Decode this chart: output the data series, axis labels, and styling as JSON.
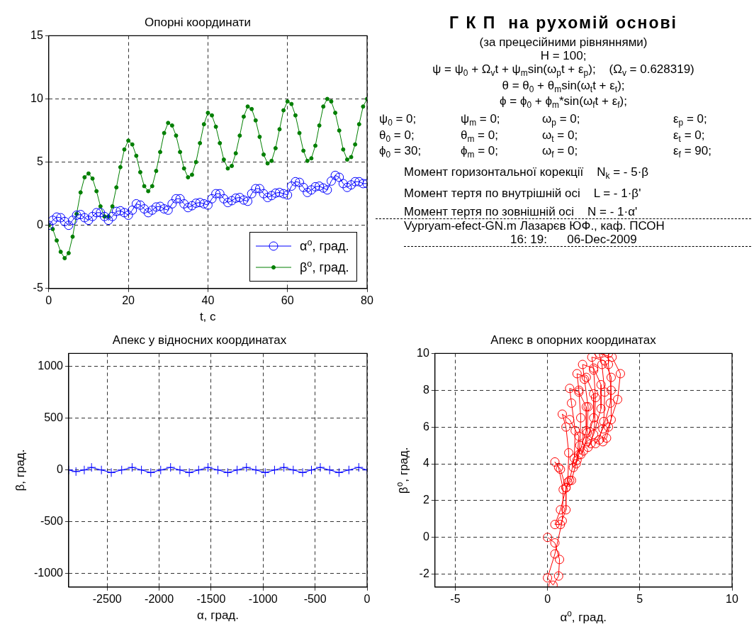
{
  "chart_data": [
    {
      "type": "line",
      "title": "Опорні координати",
      "xlabel": "t, c",
      "xlim": [
        0,
        80
      ],
      "xticks": [
        0,
        20,
        40,
        60,
        80
      ],
      "ylim": [
        -5,
        15
      ],
      "yticks": [
        -5,
        0,
        5,
        10,
        15
      ],
      "grid": true,
      "legend": "bottom right",
      "marker": "circle",
      "series": [
        {
          "name": "α$^{o}$, град.",
          "color": "#0000ff",
          "x": [
            0,
            1,
            2,
            3,
            4,
            5,
            6,
            7,
            8,
            9,
            10,
            11,
            12,
            13,
            14,
            15,
            16,
            17,
            18,
            19,
            20,
            21,
            22,
            23,
            24,
            25,
            26,
            27,
            28,
            29,
            30,
            31,
            32,
            33,
            34,
            35,
            36,
            37,
            38,
            39,
            40,
            41,
            42,
            43,
            44,
            45,
            46,
            47,
            48,
            49,
            50,
            51,
            52,
            53,
            54,
            55,
            56,
            57,
            58,
            59,
            60,
            61,
            62,
            63,
            64,
            65,
            66,
            67,
            68,
            69,
            70,
            71,
            72,
            73,
            74,
            75,
            76,
            77,
            78,
            79,
            80
          ],
          "values": [
            0,
            0.4,
            0.65,
            0.6,
            0.3,
            0,
            0.4,
            0.8,
            0.85,
            0.6,
            0.4,
            0.7,
            1,
            1,
            0.7,
            0.4,
            0.7,
            1.1,
            1.15,
            1,
            0.8,
            1.2,
            1.7,
            1.6,
            1.3,
            1,
            1.2,
            1.45,
            1.5,
            1.3,
            1.2,
            1.7,
            2.1,
            2.1,
            1.7,
            1.4,
            1.55,
            1.75,
            1.8,
            1.7,
            1.6,
            2.1,
            2.5,
            2.5,
            2.1,
            1.8,
            1.95,
            2.15,
            2.2,
            2,
            1.9,
            2.5,
            2.9,
            2.9,
            2.5,
            2.2,
            2.35,
            2.55,
            2.6,
            2.5,
            2.4,
            3.1,
            3.45,
            3.4,
            3,
            2.6,
            2.8,
            3.05,
            3.1,
            2.95,
            2.8,
            3.5,
            3.95,
            3.8,
            3.3,
            3,
            3.2,
            3.45,
            3.45,
            3.3,
            3.3
          ]
        },
        {
          "name": "β$^{o}$, град.",
          "color": "#007f00",
          "x": [
            0,
            1,
            2,
            3,
            4,
            5,
            6,
            7,
            8,
            9,
            10,
            11,
            12,
            13,
            14,
            15,
            16,
            17,
            18,
            19,
            20,
            21,
            22,
            23,
            24,
            25,
            26,
            27,
            28,
            29,
            30,
            31,
            32,
            33,
            34,
            35,
            36,
            37,
            38,
            39,
            40,
            41,
            42,
            43,
            44,
            45,
            46,
            47,
            48,
            49,
            50,
            51,
            52,
            53,
            54,
            55,
            56,
            57,
            58,
            59,
            60,
            61,
            62,
            63,
            64,
            65,
            66,
            67,
            68,
            69,
            70,
            71,
            72,
            73,
            74,
            75,
            76,
            77,
            78,
            79,
            80
          ],
          "values": [
            0,
            -0.3,
            -1.2,
            -2.1,
            -2.6,
            -2.2,
            -0.9,
            0.9,
            2.6,
            3.8,
            4.1,
            3.7,
            2.7,
            1.5,
            0.7,
            0.7,
            1.5,
            3,
            4.6,
            6,
            6.7,
            6.4,
            5.5,
            4.2,
            3.1,
            2.7,
            3.1,
            4.3,
            5.8,
            7.3,
            8.1,
            7.9,
            7.1,
            5.8,
            4.5,
            3.8,
            4,
            5,
            6.5,
            8,
            8.9,
            8.7,
            7.8,
            6.5,
            5.2,
            4.5,
            4.7,
            5.7,
            7.1,
            8.6,
            9.4,
            9.2,
            8.3,
            7,
            5.6,
            4.9,
            5.1,
            6.1,
            7.6,
            9.1,
            9.8,
            9.6,
            8.7,
            7.3,
            5.9,
            5.1,
            5.3,
            6.3,
            7.9,
            9.4,
            10,
            9.8,
            8.9,
            7.5,
            6,
            5.2,
            5.4,
            6.4,
            8,
            9.4,
            10
          ]
        }
      ]
    },
    {
      "type": "other",
      "title": "Г К П  на рухомій основі",
      "subtitle": "(за прецесійними рівняннями)",
      "annotations": [
        "H = 100;",
        "ψ = ψ$_{0}$ + Ω$_{v}$t + ψ$_{m}$sin(ω$_{p}$t + ε$_{p}$);    (Ω$_{v}$ = 0.628319)",
        "θ = θ$_{0}$ + θ$_{m}$sin(ω$_{t}$t + ε$_{t}$);",
        "ϕ = ϕ$_{0}$ + ϕ$_{m}$*sin(ω$_{f}$t + ε$_{f}$);",
        "ψ$_{0}$ = 0;",
        "ψ$_{m}$ = 0;",
        "ω$_{p}$ = 0;",
        "ε$_{p}$ = 0;",
        "θ$_{0}$ = 0;",
        "θ$_{m}$ = 0;",
        "ω$_{t}$ = 0;",
        "ε$_{t}$ = 0;",
        "ϕ$_{0}$ = 30;",
        "ϕ$_{m}$ = 0;",
        "ω$_{f}$ = 0;",
        "ε$_{f}$ = 90;",
        "Момент горизонтальної корекції    N$_{k}$ = - 5·β",
        "Момент тертя по внутрішній осі    L = - 1·β'",
        "Момент тертя по зовнішній осі    N = - 1·α'",
        "Vypryam-efect-GN.m Лазарєв ЮФ., каф. ПСОН",
        "16: 19:      06-Dec-2009"
      ]
    },
    {
      "type": "line",
      "title": "Апекс у відносних координатах",
      "xlabel": "α, град.",
      "ylabel": "β, град.",
      "xlim": [
        -2870,
        0
      ],
      "xticks": [
        -2500,
        -2000,
        -1500,
        -1000,
        -500,
        0
      ],
      "ylim": [
        -1130,
        1125
      ],
      "yticks": [
        -1000,
        -500,
        0,
        500,
        1000
      ],
      "grid": true,
      "marker": "cross",
      "series": [
        {
          "color": "#0000ff",
          "x": [
            -2870,
            -2800,
            -2720,
            -2650,
            -2555,
            -2460,
            -2360,
            -2260,
            -2170,
            -2080,
            -1985,
            -1890,
            -1800,
            -1710,
            -1620,
            -1530,
            -1435,
            -1340,
            -1250,
            -1160,
            -1070,
            -980,
            -890,
            -800,
            -710,
            -620,
            -535,
            -450,
            -360,
            -270,
            -175,
            -80,
            0
          ],
          "values": [
            0,
            -15,
            0,
            25,
            0,
            -25,
            0,
            25,
            0,
            -25,
            0,
            25,
            0,
            -25,
            0,
            25,
            0,
            -25,
            0,
            25,
            0,
            -25,
            0,
            25,
            0,
            -25,
            0,
            25,
            0,
            -25,
            0,
            25,
            0
          ]
        }
      ]
    },
    {
      "type": "line",
      "title": "Апекс в опорних координатах",
      "xlabel": "α$^{o}$, град.",
      "ylabel": "β$^{o}$, град.",
      "xlim": [
        -6.1,
        10
      ],
      "xticks": [
        -5,
        0,
        5,
        10
      ],
      "ylim": [
        -2.7,
        10
      ],
      "yticks": [
        -2,
        0,
        2,
        4,
        6,
        8,
        10
      ],
      "grid": true,
      "marker": "circle",
      "series": [
        {
          "color": "#ff0000",
          "x": [
            0,
            0.4,
            0.65,
            0.6,
            0.3,
            0,
            0.4,
            0.8,
            0.85,
            0.6,
            0.4,
            0.7,
            1,
            1,
            0.7,
            0.4,
            0.7,
            1.1,
            1.15,
            1,
            0.8,
            1.2,
            1.7,
            1.6,
            1.3,
            1,
            1.2,
            1.45,
            1.5,
            1.3,
            1.2,
            1.7,
            2.1,
            2.1,
            1.7,
            1.4,
            1.55,
            1.75,
            1.8,
            1.7,
            1.6,
            2.1,
            2.5,
            2.5,
            2.1,
            1.8,
            1.95,
            2.15,
            2.2,
            2,
            1.9,
            2.5,
            2.9,
            2.9,
            2.5,
            2.2,
            2.35,
            2.55,
            2.6,
            2.5,
            2.4,
            3.1,
            3.45,
            3.4,
            3,
            2.6,
            2.8,
            3.05,
            3.1,
            2.95,
            2.8,
            3.5,
            3.95,
            3.8,
            3.3,
            3,
            3.2,
            3.45,
            3.45,
            3.3,
            3.3
          ],
          "values": [
            0,
            -0.3,
            -1.2,
            -2.1,
            -2.6,
            -2.2,
            -0.9,
            0.9,
            2.6,
            3.8,
            4.1,
            3.7,
            2.7,
            1.5,
            0.7,
            0.7,
            1.5,
            3,
            4.6,
            6,
            6.7,
            6.4,
            5.5,
            4.2,
            3.1,
            2.7,
            3.1,
            4.3,
            5.8,
            7.3,
            8.1,
            7.9,
            7.1,
            5.8,
            4.5,
            3.8,
            4,
            5,
            6.5,
            8,
            8.9,
            8.7,
            7.8,
            6.5,
            5.2,
            4.5,
            4.7,
            5.7,
            7.1,
            8.6,
            9.4,
            9.2,
            8.3,
            7,
            5.6,
            4.9,
            5.1,
            6.1,
            7.6,
            9.1,
            9.8,
            9.6,
            8.7,
            7.3,
            5.9,
            5.1,
            5.3,
            6.3,
            7.9,
            9.4,
            10,
            9.8,
            8.9,
            7.5,
            6,
            5.2,
            5.4,
            6.4,
            8,
            9.4,
            10
          ]
        }
      ]
    }
  ]
}
